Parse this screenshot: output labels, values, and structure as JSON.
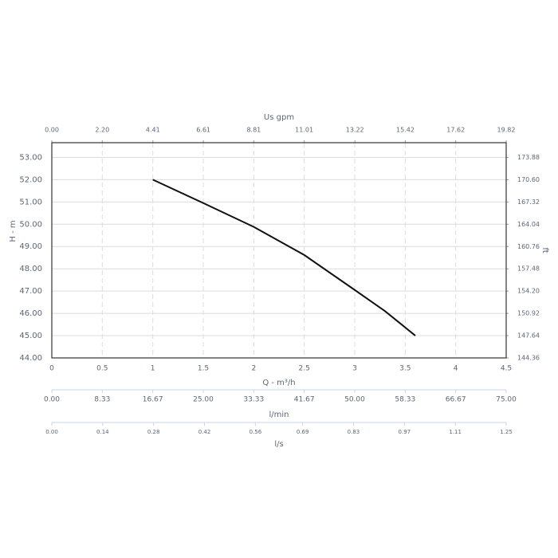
{
  "chart_data": {
    "type": "line",
    "x_label": "Q - m³/h",
    "y_label": "H - m",
    "y2_label": "ft",
    "x": [
      1,
      1.5,
      2,
      2.5,
      3,
      3.3,
      3.6
    ],
    "series": [
      {
        "color": "#111111",
        "values": [
          52.0,
          50.95,
          49.88,
          48.62,
          47.05,
          46.1,
          45.0
        ]
      }
    ],
    "xlim": [
      0,
      4.5
    ],
    "xticks": [
      0,
      0.5,
      1,
      1.5,
      2,
      2.5,
      3,
      3.5,
      4,
      4.5
    ],
    "ylim": [
      44,
      53.66
    ],
    "yticks": [
      {
        "value": 44,
        "label": "44.00"
      },
      {
        "value": 45,
        "label": "45.00"
      },
      {
        "value": 46,
        "label": "46.00"
      },
      {
        "value": 47,
        "label": "47.00"
      },
      {
        "value": 48,
        "label": "48.00"
      },
      {
        "value": 49,
        "label": "49.00"
      },
      {
        "value": 50,
        "label": "50.00"
      },
      {
        "value": 51,
        "label": "51.00"
      },
      {
        "value": 52,
        "label": "52.00"
      },
      {
        "value": 53,
        "label": "53.00"
      }
    ],
    "y2lim": [
      144.36,
      176.05
    ],
    "y2ticks": [
      144.36,
      147.64,
      150.92,
      {
        "value": 154.2,
        "label": "154.20"
      },
      157.48,
      160.76,
      164.04,
      167.32,
      {
        "value": 170.6,
        "label": "170.60"
      },
      173.88
    ],
    "grid": true,
    "top_axis": {
      "label": "Us gpm",
      "lim": [
        0,
        19.82
      ],
      "ticks": [
        {
          "value": 0,
          "label": "0.00"
        },
        {
          "value": 2.2,
          "label": "2.20"
        },
        4.41,
        6.61,
        8.81,
        11.01,
        13.22,
        15.42,
        17.62,
        19.82
      ]
    },
    "bottom_axes": [
      {
        "label": "l/min",
        "lim": [
          0,
          75
        ],
        "ticks": [
          {
            "value": 0,
            "label": "0.00"
          },
          8.33,
          16.67,
          {
            "value": 25,
            "label": "25.00"
          },
          33.33,
          41.67,
          {
            "value": 50,
            "label": "50.00"
          },
          58.33,
          66.67,
          {
            "value": 75,
            "label": "75.00"
          }
        ]
      },
      {
        "label": "l/s",
        "lim": [
          0,
          1.25
        ],
        "ticks": [
          {
            "value": 0,
            "label": "0.00"
          },
          0.14,
          0.28,
          0.42,
          0.56,
          0.69,
          0.83,
          0.97,
          1.11,
          1.25
        ]
      }
    ]
  }
}
